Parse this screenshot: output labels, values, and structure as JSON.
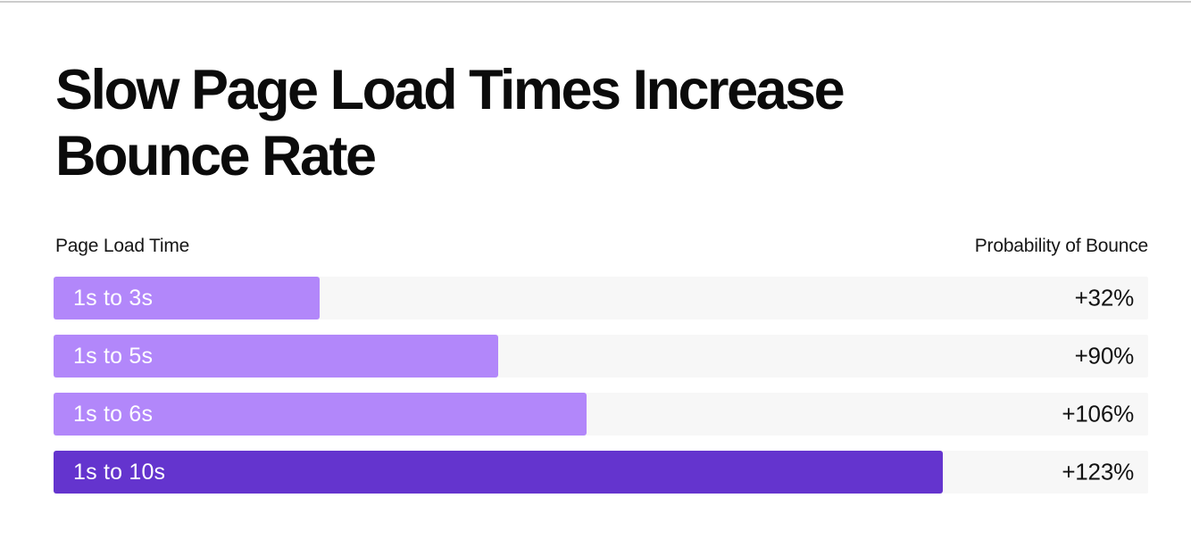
{
  "page": {
    "background": "#ffffff",
    "top_rule_color": "#cccccc"
  },
  "header": {
    "title": "Slow Page Load Times Increase Bounce Rate"
  },
  "chart": {
    "left_header": "Page Load Time",
    "right_header": "Probability of Bounce",
    "rows": [
      {
        "label": "1s to 3s",
        "value_label": "+32%",
        "width_pct": 24.3,
        "color": "bar_light"
      },
      {
        "label": "1s to 5s",
        "value_label": "+90%",
        "width_pct": 40.6,
        "color": "bar_light"
      },
      {
        "label": "1s to 6s",
        "value_label": "+106%",
        "width_pct": 48.7,
        "color": "bar_light"
      },
      {
        "label": "1s to 10s",
        "value_label": "+123%",
        "width_pct": 81.2,
        "color": "bar_dark"
      }
    ]
  },
  "colors": {
    "bar_light": "#b287fa",
    "bar_dark": "#6434ce",
    "track": "#f7f7f7"
  },
  "chart_data": {
    "type": "bar",
    "orientation": "horizontal",
    "title": "Slow Page Load Times Increase Bounce Rate",
    "categories": [
      "1s to 3s",
      "1s to 5s",
      "1s to 6s",
      "1s to 10s"
    ],
    "values": [
      32,
      90,
      106,
      123
    ],
    "value_labels": [
      "+32%",
      "+90%",
      "+106%",
      "+123%"
    ],
    "xlabel": "Page Load Time",
    "ylabel": "Probability of Bounce",
    "bar_length_proportional_to_seconds": [
      3,
      5,
      6,
      10
    ],
    "legend": "none",
    "grid": false
  }
}
